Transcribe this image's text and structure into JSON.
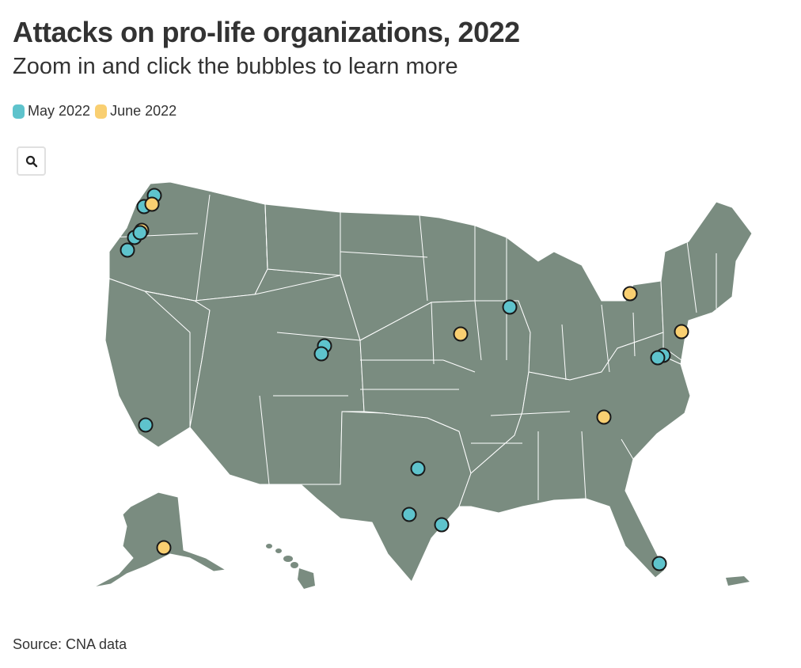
{
  "header": {
    "title": "Attacks on pro-life organizations, 2022",
    "subtitle": "Zoom in and click the bubbles to learn more"
  },
  "legend": [
    {
      "label": "May 2022",
      "color": "#5ec3cc"
    },
    {
      "label": "June 2022",
      "color": "#f9cf71"
    }
  ],
  "controls": {
    "zoom_icon": "search-icon"
  },
  "map": {
    "land_color": "#7a8c80",
    "border_color": "#ffffff",
    "bubbles": [
      {
        "place": "Washington",
        "period": "May 2022"
      },
      {
        "place": "Washington",
        "period": "May 2022"
      },
      {
        "place": "Washington",
        "period": "June 2022"
      },
      {
        "place": "Oregon",
        "period": "June 2022"
      },
      {
        "place": "Oregon",
        "period": "May 2022"
      },
      {
        "place": "Oregon",
        "period": "May 2022"
      },
      {
        "place": "Oregon",
        "period": "May 2022"
      },
      {
        "place": "California",
        "period": "May 2022"
      },
      {
        "place": "Colorado",
        "period": "May 2022"
      },
      {
        "place": "Colorado",
        "period": "May 2022"
      },
      {
        "place": "Texas",
        "period": "May 2022"
      },
      {
        "place": "Texas",
        "period": "May 2022"
      },
      {
        "place": "Texas",
        "period": "May 2022"
      },
      {
        "place": "Iowa",
        "period": "June 2022"
      },
      {
        "place": "Wisconsin",
        "period": "May 2022"
      },
      {
        "place": "New York",
        "period": "June 2022"
      },
      {
        "place": "New Jersey",
        "period": "June 2022"
      },
      {
        "place": "Maryland",
        "period": "May 2022"
      },
      {
        "place": "Virginia",
        "period": "May 2022"
      },
      {
        "place": "North Carolina",
        "period": "June 2022"
      },
      {
        "place": "Florida",
        "period": "May 2022"
      },
      {
        "place": "Alaska",
        "period": "June 2022"
      }
    ]
  },
  "source": "Source: CNA data"
}
